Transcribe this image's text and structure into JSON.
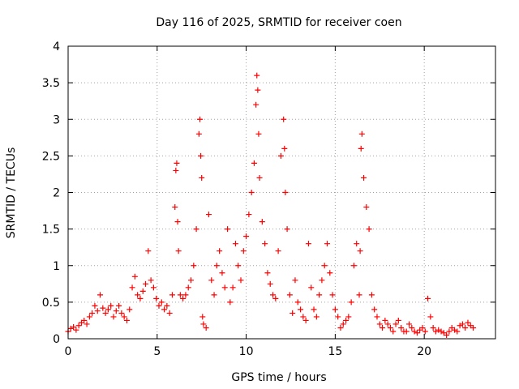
{
  "chart_data": {
    "type": "scatter",
    "title": "Day 116 of 2025, SRMTID for receiver coen",
    "xlabel": "GPS time / hours",
    "ylabel": "SRMTID / TECUs",
    "xlim": [
      0,
      24
    ],
    "ylim": [
      0,
      4
    ],
    "x_ticks": [
      0,
      5,
      10,
      15,
      20
    ],
    "x_tick_labels": [
      "0",
      "5",
      "10",
      "15",
      "20"
    ],
    "y_ticks": [
      0,
      0.5,
      1,
      1.5,
      2,
      2.5,
      3,
      3.5,
      4
    ],
    "y_tick_labels": [
      "0",
      "0.5",
      "1",
      "1.5",
      "2",
      "2.5",
      "3",
      "3.5",
      "4"
    ],
    "grid": true,
    "marker": "+",
    "colors": {
      "series": "#ff0000",
      "grid": "#a0a0a0",
      "axis": "#000000"
    },
    "series": [
      {
        "name": "SRMTID",
        "x": [
          0.0,
          0.15,
          0.3,
          0.45,
          0.6,
          0.75,
          0.9,
          1.05,
          1.2,
          1.35,
          1.5,
          1.65,
          1.8,
          1.95,
          2.1,
          2.25,
          2.4,
          2.55,
          2.7,
          2.85,
          3.0,
          3.15,
          3.3,
          3.45,
          3.6,
          3.75,
          3.9,
          4.05,
          4.2,
          4.35,
          4.5,
          4.65,
          4.8,
          4.95,
          5.1,
          5.25,
          5.4,
          5.55,
          5.7,
          5.85,
          6.0,
          6.05,
          6.1,
          6.15,
          6.2,
          6.3,
          6.45,
          6.6,
          6.75,
          6.9,
          7.05,
          7.2,
          7.35,
          7.4,
          7.45,
          7.5,
          7.55,
          7.6,
          7.75,
          7.9,
          8.05,
          8.2,
          8.35,
          8.5,
          8.65,
          8.8,
          8.95,
          9.1,
          9.25,
          9.4,
          9.55,
          9.7,
          9.85,
          10.0,
          10.15,
          10.3,
          10.45,
          10.55,
          10.6,
          10.65,
          10.7,
          10.75,
          10.9,
          11.05,
          11.2,
          11.35,
          11.5,
          11.65,
          11.8,
          11.95,
          12.1,
          12.15,
          12.2,
          12.3,
          12.45,
          12.6,
          12.75,
          12.9,
          13.05,
          13.2,
          13.35,
          13.5,
          13.65,
          13.8,
          13.95,
          14.1,
          14.25,
          14.4,
          14.55,
          14.7,
          14.85,
          15.0,
          15.15,
          15.3,
          15.45,
          15.6,
          15.75,
          15.9,
          16.05,
          16.2,
          16.35,
          16.4,
          16.45,
          16.5,
          16.6,
          16.75,
          16.9,
          17.05,
          17.2,
          17.35,
          17.5,
          17.65,
          17.8,
          17.95,
          18.1,
          18.25,
          18.4,
          18.55,
          18.7,
          18.85,
          19.0,
          19.15,
          19.3,
          19.45,
          19.6,
          19.75,
          19.9,
          20.05,
          20.2,
          20.35,
          20.5,
          20.65,
          20.8,
          20.95,
          21.1,
          21.25,
          21.4,
          21.55,
          21.7,
          21.85,
          22.0,
          22.15,
          22.3,
          22.45,
          22.6,
          22.75
        ],
        "y": [
          0.1,
          0.14,
          0.16,
          0.12,
          0.18,
          0.22,
          0.25,
          0.2,
          0.3,
          0.35,
          0.45,
          0.38,
          0.6,
          0.42,
          0.35,
          0.4,
          0.45,
          0.3,
          0.38,
          0.45,
          0.35,
          0.3,
          0.25,
          0.4,
          0.7,
          0.85,
          0.6,
          0.55,
          0.65,
          0.75,
          1.2,
          0.8,
          0.7,
          0.55,
          0.45,
          0.5,
          0.4,
          0.45,
          0.35,
          0.6,
          1.8,
          2.3,
          2.4,
          1.6,
          1.2,
          0.6,
          0.55,
          0.6,
          0.7,
          0.8,
          1.0,
          1.5,
          2.8,
          3.0,
          2.5,
          2.2,
          0.3,
          0.2,
          0.15,
          1.7,
          0.8,
          0.6,
          1.0,
          1.2,
          0.9,
          0.7,
          1.5,
          0.5,
          0.7,
          1.3,
          1.0,
          0.8,
          1.2,
          1.4,
          1.7,
          2.0,
          2.4,
          3.2,
          3.6,
          3.4,
          2.8,
          2.2,
          1.6,
          1.3,
          0.9,
          0.75,
          0.6,
          0.55,
          1.2,
          2.5,
          3.0,
          2.6,
          2.0,
          1.5,
          0.6,
          0.35,
          0.8,
          0.5,
          0.4,
          0.3,
          0.25,
          1.3,
          0.7,
          0.4,
          0.3,
          0.6,
          0.8,
          1.0,
          1.3,
          0.9,
          0.6,
          0.4,
          0.3,
          0.15,
          0.2,
          0.25,
          0.3,
          0.5,
          1.0,
          1.3,
          0.6,
          1.2,
          2.6,
          2.8,
          2.2,
          1.8,
          1.5,
          0.6,
          0.4,
          0.3,
          0.2,
          0.15,
          0.25,
          0.2,
          0.15,
          0.1,
          0.2,
          0.25,
          0.15,
          0.1,
          0.1,
          0.2,
          0.15,
          0.1,
          0.08,
          0.12,
          0.15,
          0.1,
          0.55,
          0.3,
          0.15,
          0.1,
          0.12,
          0.1,
          0.08,
          0.05,
          0.1,
          0.15,
          0.12,
          0.1,
          0.18,
          0.2,
          0.15,
          0.22,
          0.18,
          0.15
        ]
      }
    ]
  }
}
